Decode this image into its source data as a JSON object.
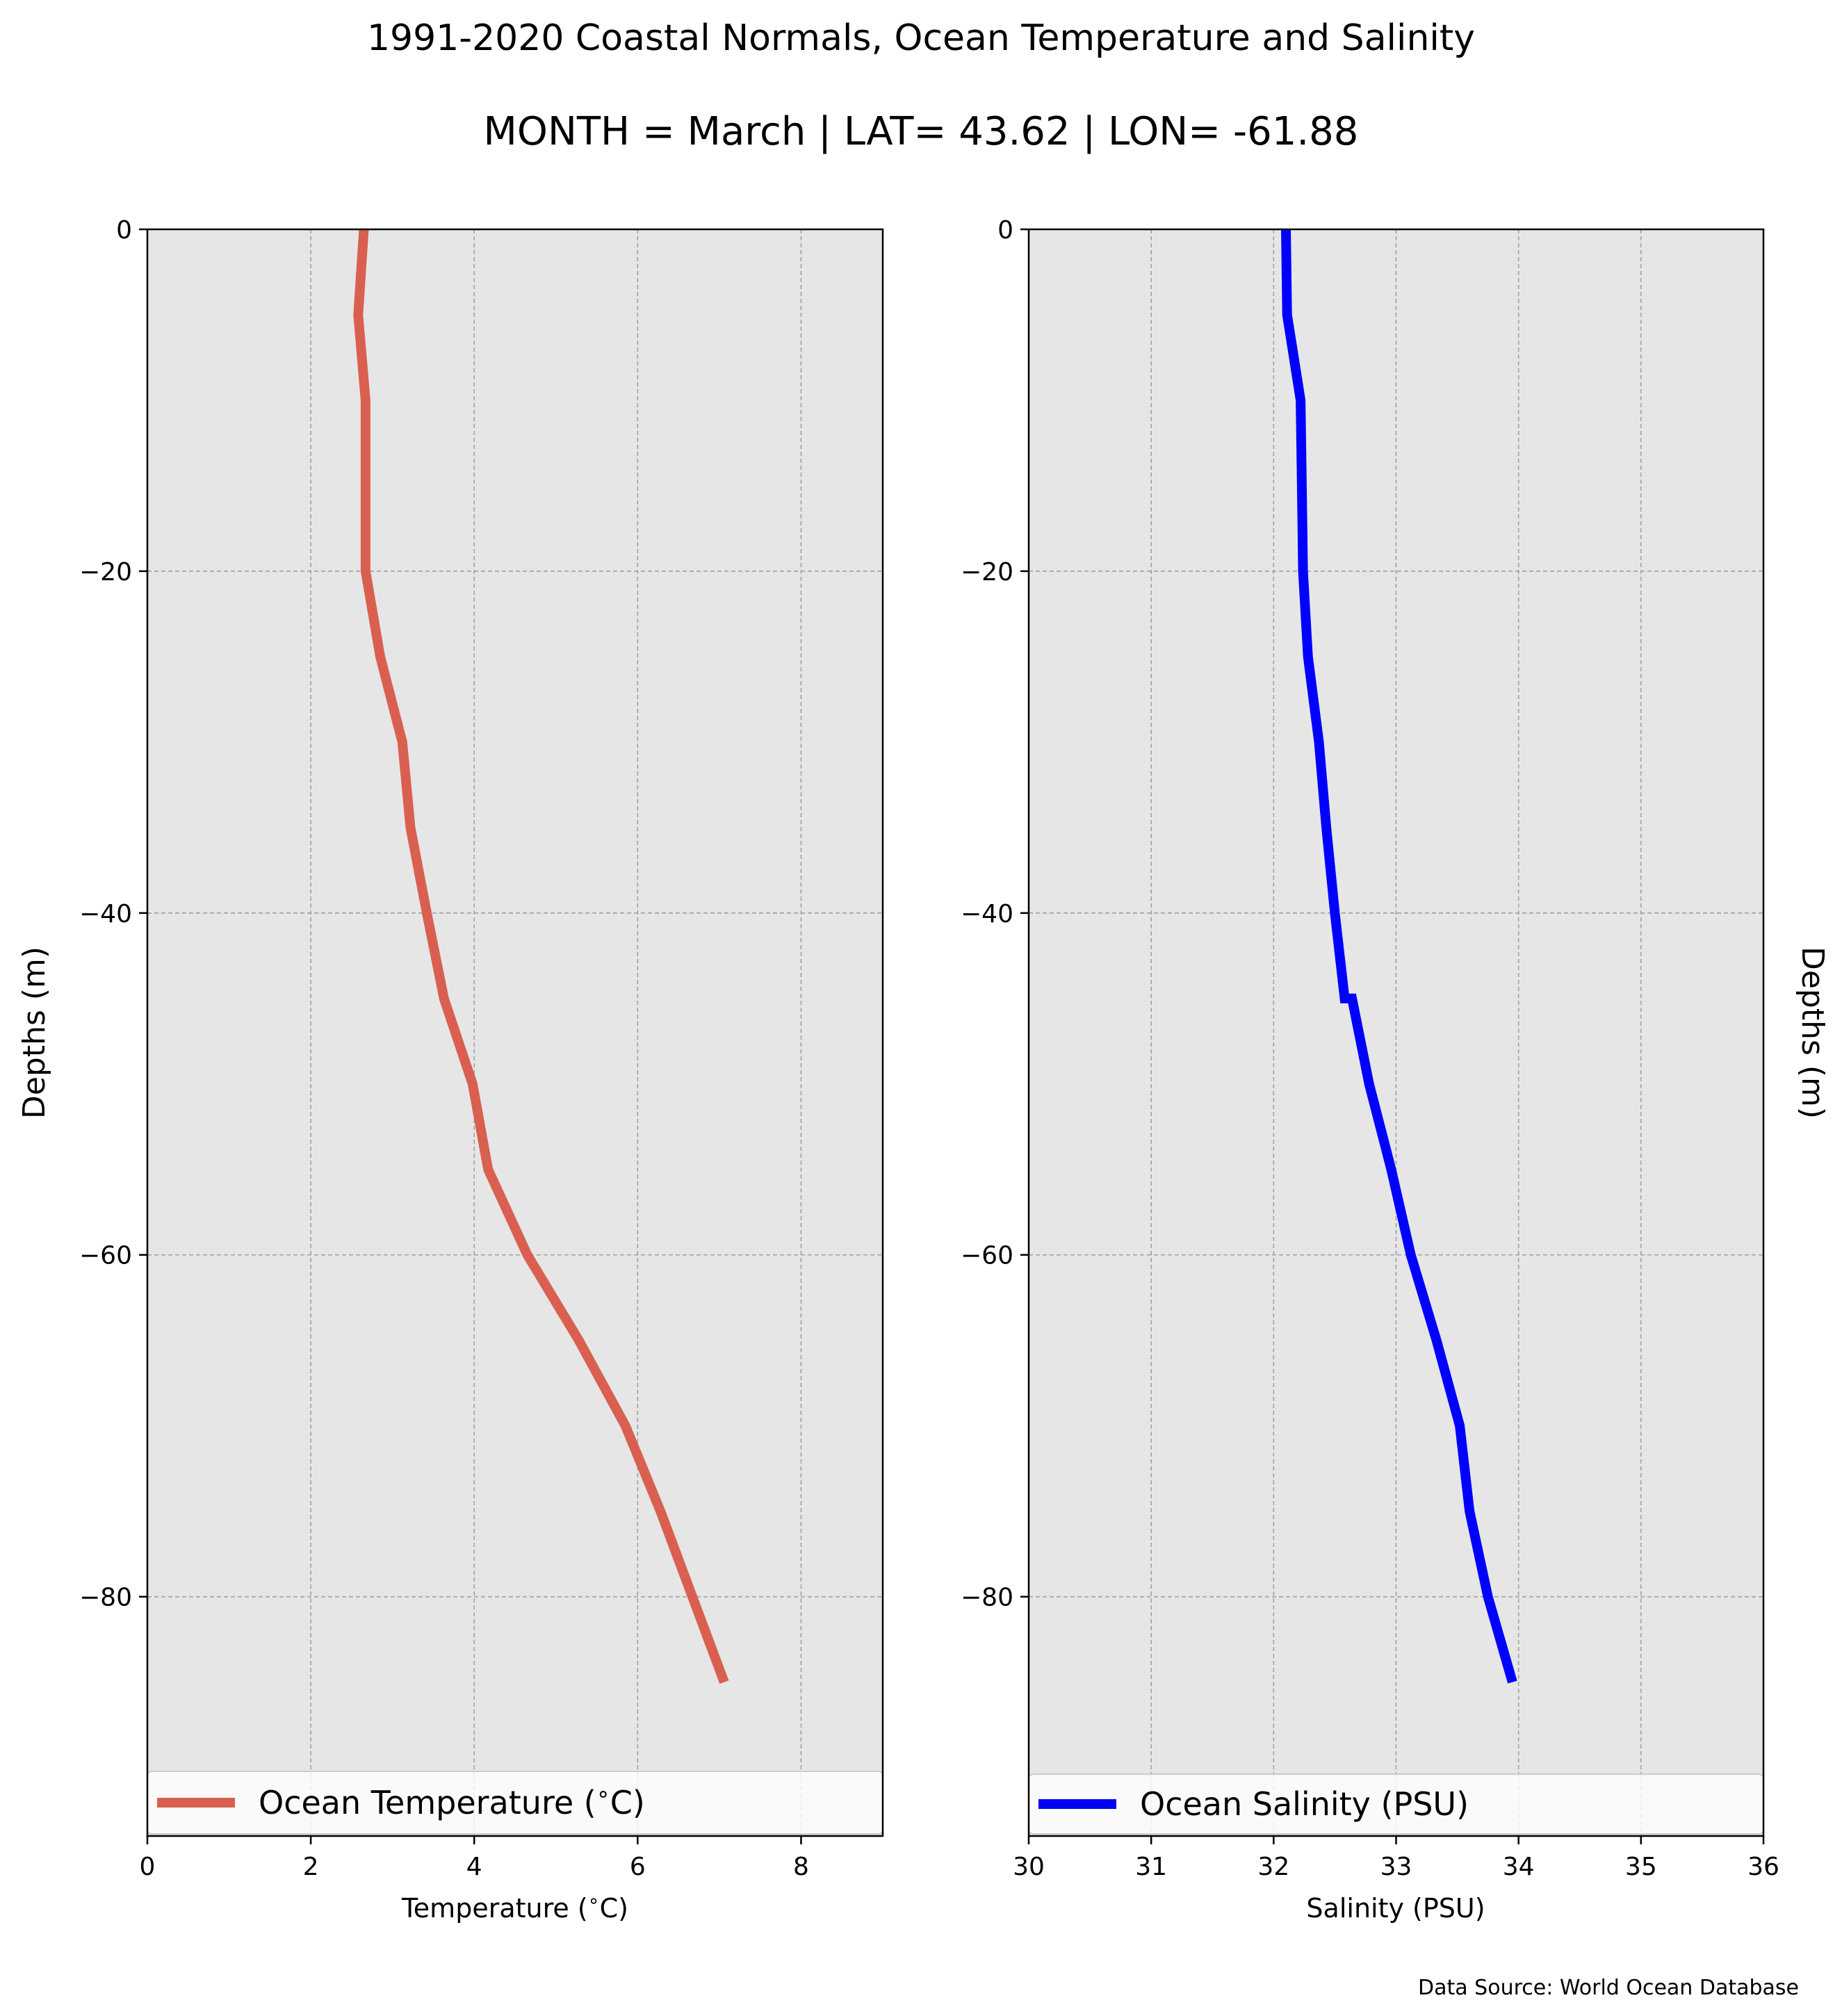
{
  "figure": {
    "title": "1991-2020 Coastal Normals, Ocean Temperature and Salinity",
    "subtitle": "MONTH = March | LAT= 43.62 | LON= -61.88",
    "source": "Data Source: World Ocean Database"
  },
  "colors": {
    "temperature_line": "#d96050",
    "salinity_line": "#0000ff",
    "axes_background": "#e6e6e6",
    "grid": "#a0a0a0"
  },
  "chart_data": [
    {
      "type": "line",
      "orientation": "vertical-profile",
      "xlabel": "Temperature ($^\\circ$C)",
      "ylabel": "Depths (m)",
      "xlim": [
        0,
        9
      ],
      "ylim": [
        -94,
        0
      ],
      "x_ticks": [
        0,
        2,
        4,
        6,
        8
      ],
      "x_tick_labels": [
        "0",
        "2",
        "4",
        "6",
        "8"
      ],
      "y_ticks": [
        0,
        -20,
        -40,
        -60,
        -80
      ],
      "y_tick_labels": [
        "0",
        "−20",
        "−40",
        "−60",
        "−80"
      ],
      "grid": true,
      "legend_position": "bottom",
      "series": [
        {
          "name": "Ocean Temperature ($^\\circ$C)",
          "color": "#d96050",
          "x": [
            2.65,
            2.58,
            2.67,
            2.67,
            2.67,
            2.67,
            2.85,
            3.12,
            3.22,
            3.42,
            3.63,
            3.98,
            4.17,
            4.65,
            5.28,
            5.85,
            6.28,
            6.67,
            7.06
          ],
          "y": [
            0,
            -5,
            -10,
            -15,
            -20,
            -20,
            -25,
            -30,
            -35,
            -40,
            -45,
            -50,
            -55,
            -60,
            -65,
            -70,
            -75,
            -80,
            -85
          ]
        }
      ]
    },
    {
      "type": "line",
      "orientation": "vertical-profile",
      "xlabel": "Salinity (PSU)",
      "ylabel": "Depths (m)",
      "xlim": [
        30,
        36
      ],
      "ylim": [
        -94,
        0
      ],
      "x_ticks": [
        30,
        31,
        32,
        33,
        34,
        35,
        36
      ],
      "x_tick_labels": [
        "30",
        "31",
        "32",
        "33",
        "34",
        "35",
        "36"
      ],
      "y_ticks": [
        0,
        -20,
        -40,
        -60,
        -80
      ],
      "y_tick_labels": [
        "0",
        "−20",
        "−40",
        "−60",
        "−80"
      ],
      "grid": true,
      "legend_position": "bottom",
      "series": [
        {
          "name": "Ocean Salinity (PSU)",
          "color": "#0000ff",
          "x": [
            32.1,
            32.11,
            32.22,
            32.23,
            32.24,
            32.28,
            32.37,
            32.43,
            32.5,
            32.58,
            32.64,
            32.78,
            32.96,
            33.12,
            33.33,
            33.52,
            33.6,
            33.75,
            33.95
          ],
          "y": [
            0,
            -5,
            -10,
            -15,
            -20,
            -25,
            -30,
            -35,
            -40,
            -45,
            -45,
            -50,
            -55,
            -60,
            -65,
            -70,
            -75,
            -80,
            -85
          ]
        }
      ]
    }
  ]
}
